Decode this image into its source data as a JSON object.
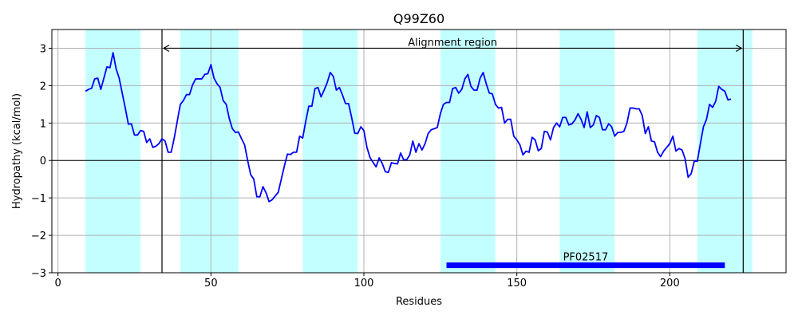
{
  "chart_data": {
    "type": "line",
    "title": "Q99Z60",
    "xlabel": "Residues",
    "ylabel": "Hydropathy (kcal/mol)",
    "xlim": [
      -2,
      238
    ],
    "ylim": [
      -3,
      3.5
    ],
    "xticks": [
      0,
      50,
      100,
      150,
      200
    ],
    "yticks": [
      -3,
      -2,
      -1,
      0,
      1,
      2,
      3
    ],
    "xtick_labels": [
      "0",
      "50",
      "100",
      "150",
      "200"
    ],
    "ytick_labels": [
      "−3",
      "−2",
      "−1",
      "0",
      "1",
      "2",
      "3"
    ],
    "grid": true,
    "colors": {
      "line": "#0000ff",
      "band": "#c4ffff",
      "domain_bar": "#0000ff",
      "grid": "#b0b0b0"
    },
    "series": [
      {
        "x": [
          9,
          10,
          11,
          12,
          13,
          14,
          15,
          16,
          17,
          18,
          19,
          20,
          21,
          22,
          23,
          24,
          25,
          26,
          27,
          28,
          29,
          30,
          31,
          32,
          33,
          34,
          35,
          36,
          37,
          38,
          39,
          40,
          41,
          42,
          43,
          44,
          45,
          46,
          47,
          48,
          49,
          50,
          51,
          52,
          53,
          54,
          55,
          56,
          57,
          58,
          59,
          60,
          61,
          62,
          63,
          64,
          65,
          66,
          67,
          68,
          69,
          70,
          71,
          72,
          73,
          74,
          75,
          76,
          77,
          78,
          79,
          80,
          81,
          82,
          83,
          84,
          85,
          86,
          87,
          88,
          89,
          90,
          91,
          92,
          93,
          94,
          95,
          96,
          97,
          98,
          99,
          100,
          101,
          102,
          103,
          104,
          105,
          106,
          107,
          108,
          109,
          110,
          111,
          112,
          113,
          114,
          115,
          116,
          117,
          118,
          119,
          120,
          121,
          122,
          123,
          124,
          125,
          126,
          127,
          128,
          129,
          130,
          131,
          132,
          133,
          134,
          135,
          136,
          137,
          138,
          139,
          140,
          141,
          142,
          143,
          144,
          145,
          146,
          147,
          148,
          149,
          150,
          151,
          152,
          153,
          154,
          155,
          156,
          157,
          158,
          159,
          160,
          161,
          162,
          163,
          164,
          165,
          166,
          167,
          168,
          169,
          170,
          171,
          172,
          173,
          174,
          175,
          176,
          177,
          178,
          179,
          180,
          181,
          182,
          183,
          184,
          185,
          186,
          187,
          188,
          189,
          190,
          191,
          192,
          193,
          194,
          195,
          196,
          197,
          198,
          199,
          200,
          201,
          202,
          203,
          204,
          205,
          206,
          207,
          208,
          209,
          210,
          211,
          212,
          213,
          214,
          215,
          216,
          217,
          218,
          219,
          220
        ],
        "y": [
          1.85,
          1.9,
          1.93,
          2.18,
          2.2,
          1.9,
          2.2,
          2.5,
          2.48,
          2.88,
          2.45,
          2.2,
          1.8,
          1.4,
          0.97,
          0.98,
          0.68,
          0.68,
          0.8,
          0.78,
          0.48,
          0.58,
          0.35,
          0.38,
          0.45,
          0.58,
          0.52,
          0.22,
          0.22,
          0.6,
          1.05,
          1.5,
          1.6,
          1.76,
          1.76,
          2.02,
          2.18,
          2.18,
          2.18,
          2.3,
          2.32,
          2.56,
          2.2,
          2.05,
          1.95,
          1.6,
          1.5,
          1.12,
          0.85,
          0.75,
          0.76,
          0.58,
          0.42,
          0.0,
          -0.38,
          -0.5,
          -0.97,
          -0.97,
          -0.7,
          -0.86,
          -1.1,
          -1.05,
          -0.95,
          -0.85,
          -0.5,
          -0.15,
          0.17,
          0.16,
          0.22,
          0.22,
          0.65,
          0.6,
          1.05,
          1.45,
          1.45,
          1.92,
          1.95,
          1.7,
          1.88,
          2.08,
          2.35,
          2.25,
          1.88,
          1.95,
          1.75,
          1.52,
          1.52,
          1.15,
          0.73,
          0.72,
          0.9,
          0.8,
          0.35,
          0.08,
          -0.05,
          -0.17,
          0.07,
          -0.08,
          -0.3,
          -0.32,
          -0.06,
          -0.08,
          -0.09,
          0.2,
          0.02,
          0.02,
          0.15,
          0.52,
          0.22,
          0.45,
          0.28,
          0.45,
          0.72,
          0.82,
          0.85,
          0.88,
          1.25,
          1.5,
          1.55,
          1.55,
          1.92,
          1.95,
          1.8,
          1.9,
          2.18,
          2.3,
          1.98,
          1.88,
          1.88,
          2.2,
          2.35,
          2.05,
          1.8,
          1.78,
          1.5,
          1.4,
          1.42,
          1.0,
          1.1,
          1.1,
          0.65,
          0.55,
          0.42,
          0.15,
          0.25,
          0.22,
          0.62,
          0.55,
          0.26,
          0.32,
          0.78,
          0.76,
          0.55,
          0.88,
          1.0,
          0.9,
          1.15,
          1.15,
          0.95,
          0.98,
          1.08,
          1.25,
          1.1,
          0.88,
          1.3,
          0.88,
          0.95,
          1.2,
          1.15,
          0.82,
          0.82,
          0.98,
          0.9,
          0.65,
          0.75,
          0.75,
          0.78,
          1.0,
          1.4,
          1.4,
          1.38,
          1.38,
          1.2,
          0.72,
          0.9,
          0.52,
          0.5,
          0.22,
          0.1,
          0.25,
          0.35,
          0.45,
          0.65,
          0.25,
          0.32,
          0.28,
          0.05,
          -0.45,
          -0.35,
          -0.02,
          -0.02,
          0.45,
          0.9,
          1.1,
          1.5,
          1.42,
          1.58,
          1.98,
          1.9,
          1.85,
          1.62,
          1.64
        ]
      }
    ],
    "highlight_bands": [
      {
        "x0": 9,
        "x1": 27
      },
      {
        "x0": 40,
        "x1": 59
      },
      {
        "x0": 80,
        "x1": 98
      },
      {
        "x0": 125,
        "x1": 143
      },
      {
        "x0": 164,
        "x1": 182
      },
      {
        "x0": 209,
        "x1": 227
      }
    ],
    "alignment_region": {
      "label": "Alignment region",
      "x0": 34,
      "x1": 224,
      "y": 3.0
    },
    "domains": [
      {
        "label": "PF02517",
        "x0": 127,
        "x1": 218,
        "y": -2.8
      }
    ]
  }
}
